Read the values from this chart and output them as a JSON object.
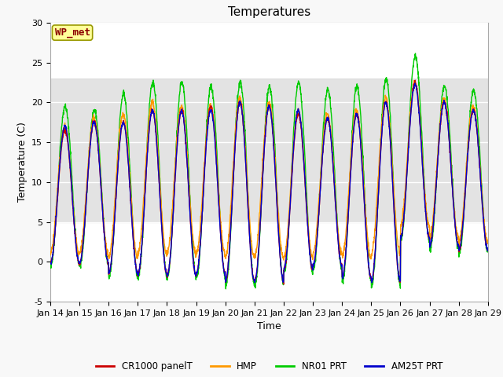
{
  "title": "Temperatures",
  "xlabel": "Time",
  "ylabel": "Temperature (C)",
  "ylim": [
    -5,
    30
  ],
  "xlim": [
    0,
    15
  ],
  "xtick_labels": [
    "Jan 14",
    "Jan 15",
    "Jan 16",
    "Jan 17",
    "Jan 18",
    "Jan 19",
    "Jan 20",
    "Jan 21",
    "Jan 22",
    "Jan 23",
    "Jan 24",
    "Jan 25",
    "Jan 26",
    "Jan 27",
    "Jan 28",
    "Jan 29"
  ],
  "annotation_text": "WP_met",
  "colors": {
    "CR1000_panelT": "#cc0000",
    "HMP": "#ff9900",
    "NR01_PRT": "#00cc00",
    "AM25T_PRT": "#0000cc"
  },
  "legend_labels": [
    "CR1000 panelT",
    "HMP",
    "NR01 PRT",
    "AM25T PRT"
  ],
  "shaded_band": [
    5,
    23
  ],
  "plot_bg_color": "#f0f0f0",
  "title_fontsize": 11,
  "axis_fontsize": 9,
  "tick_fontsize": 8
}
